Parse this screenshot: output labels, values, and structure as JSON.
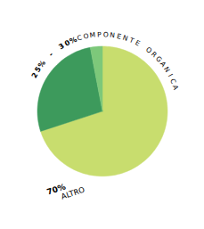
{
  "chart_data": {
    "type": "pie",
    "values": [
      70,
      27,
      3
    ],
    "colors": [
      "#c8dd6e",
      "#3d9a5c",
      "#7dc87a"
    ],
    "annotations": [
      "25% - 30%",
      "COMPONENTE ORGANICA",
      "70%",
      "ALTRO"
    ]
  }
}
